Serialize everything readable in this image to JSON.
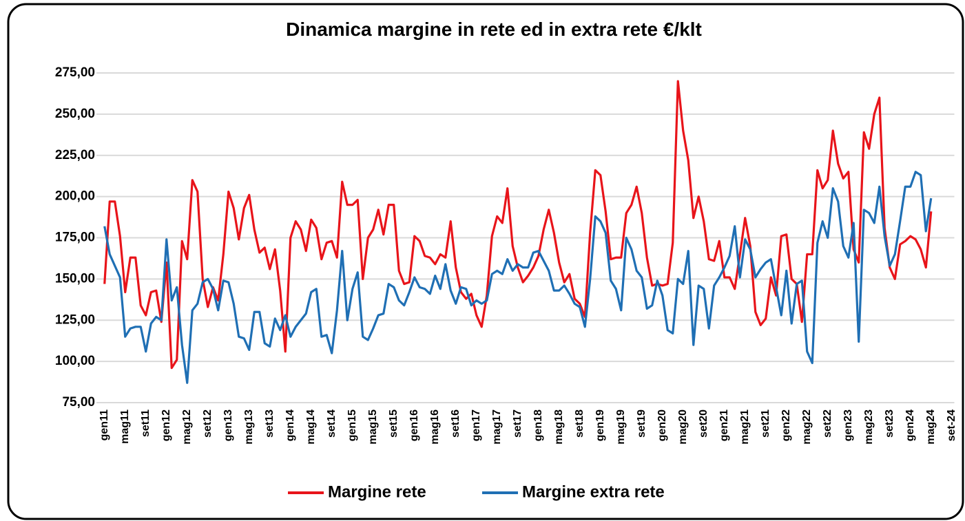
{
  "chart_data": {
    "type": "line",
    "title": "Dinamica margine in rete ed in extra rete €/klt",
    "categories": [
      "gen11",
      null,
      null,
      null,
      "mag11",
      null,
      null,
      null,
      "set11",
      null,
      null,
      null,
      "gen12",
      null,
      null,
      null,
      "mag12",
      null,
      null,
      null,
      "set12",
      null,
      null,
      null,
      "gen13",
      null,
      null,
      null,
      "mag13",
      null,
      null,
      null,
      "set13",
      null,
      null,
      null,
      "gen14",
      null,
      null,
      null,
      "mag14",
      null,
      null,
      null,
      "set14",
      null,
      null,
      null,
      "gen15",
      null,
      null,
      null,
      "mag15",
      null,
      null,
      null,
      "set15",
      null,
      null,
      null,
      "gen16",
      null,
      null,
      null,
      "mag16",
      null,
      null,
      null,
      "set16",
      null,
      null,
      null,
      "gen17",
      null,
      null,
      null,
      "mag17",
      null,
      null,
      null,
      "set17",
      null,
      null,
      null,
      "gen18",
      null,
      null,
      null,
      "mag18",
      null,
      null,
      null,
      "set18",
      null,
      null,
      null,
      "gen19",
      null,
      null,
      null,
      "mag19",
      null,
      null,
      null,
      "set19",
      null,
      null,
      null,
      "gen20",
      null,
      null,
      null,
      "mag20",
      null,
      null,
      null,
      "set20",
      null,
      null,
      null,
      "gen21",
      null,
      null,
      null,
      "mag21",
      null,
      null,
      null,
      "set21",
      null,
      null,
      null,
      "gen22",
      null,
      null,
      null,
      "mag22",
      null,
      null,
      null,
      "set22",
      null,
      null,
      null,
      "gen23",
      null,
      null,
      null,
      "mag23",
      null,
      null,
      null,
      "set23",
      null,
      null,
      null,
      "gen24",
      null,
      null,
      null,
      "mag24",
      null,
      null,
      null,
      "set-24"
    ],
    "series": [
      {
        "name": "Margine rete",
        "color": "#e8141a",
        "values": [
          147,
          197,
          197,
          176,
          142,
          163,
          163,
          134,
          128,
          142,
          143,
          124,
          160,
          96,
          101,
          173,
          162,
          210,
          203,
          150,
          133,
          145,
          137,
          165,
          203,
          193,
          174,
          193,
          201,
          180,
          166,
          169,
          156,
          168,
          143,
          106,
          175,
          185,
          180,
          167,
          186,
          181,
          162,
          172,
          173,
          163,
          209,
          195,
          195,
          198,
          150,
          175,
          180,
          192,
          177,
          195,
          195,
          155,
          147,
          148,
          176,
          173,
          164,
          163,
          159,
          165,
          163,
          185,
          157,
          142,
          138,
          141,
          128,
          121,
          140,
          176,
          188,
          184,
          205,
          170,
          157,
          148,
          152,
          157,
          164,
          180,
          192,
          178,
          160,
          148,
          153,
          138,
          135,
          127,
          178,
          216,
          213,
          191,
          162,
          163,
          163,
          190,
          195,
          206,
          190,
          163,
          146,
          147,
          146,
          147,
          172,
          270,
          240,
          222,
          187,
          200,
          185,
          162,
          161,
          173,
          151,
          151,
          144,
          165,
          187,
          170,
          130,
          122,
          126,
          151,
          140,
          176,
          177,
          150,
          147,
          124,
          165,
          165,
          216,
          205,
          210,
          240,
          220,
          211,
          215,
          168,
          160,
          239,
          229,
          250,
          260,
          181,
          157,
          150,
          171,
          173,
          176,
          174,
          168,
          157,
          191,
          null,
          null,
          null,
          null
        ]
      },
      {
        "name": "Margine extra rete",
        "color": "#1f6fb4",
        "values": [
          182,
          165,
          158,
          151,
          115,
          120,
          121,
          121,
          106,
          123,
          127,
          125,
          174,
          137,
          145,
          110,
          87,
          131,
          135,
          148,
          150,
          144,
          131,
          149,
          148,
          135,
          115,
          114,
          107,
          130,
          130,
          111,
          109,
          126,
          119,
          128,
          115,
          121,
          125,
          129,
          142,
          144,
          115,
          116,
          105,
          131,
          167,
          125,
          144,
          154,
          115,
          113,
          120,
          128,
          129,
          147,
          145,
          137,
          134,
          142,
          151,
          145,
          144,
          141,
          152,
          144,
          159,
          143,
          135,
          145,
          144,
          134,
          137,
          135,
          137,
          153,
          155,
          153,
          162,
          155,
          159,
          157,
          157,
          166,
          167,
          161,
          155,
          143,
          143,
          146,
          141,
          135,
          133,
          121,
          150,
          188,
          185,
          178,
          149,
          144,
          131,
          175,
          168,
          155,
          151,
          132,
          134,
          149,
          140,
          119,
          117,
          150,
          147,
          167,
          110,
          146,
          144,
          120,
          146,
          151,
          157,
          164,
          182,
          151,
          174,
          168,
          151,
          156,
          160,
          162,
          145,
          128,
          155,
          123,
          147,
          149,
          106,
          99,
          172,
          185,
          175,
          205,
          197,
          170,
          163,
          184,
          112,
          192,
          190,
          184,
          206,
          176,
          158,
          165,
          185,
          206,
          206,
          215,
          213,
          179,
          199,
          null,
          null,
          null,
          null
        ]
      }
    ],
    "ylim": [
      75,
      275
    ],
    "yticks": [
      {
        "value": 75,
        "label": "75,00"
      },
      {
        "value": 100,
        "label": "100,00"
      },
      {
        "value": 125,
        "label": "125,00"
      },
      {
        "value": 150,
        "label": "150,00"
      },
      {
        "value": 175,
        "label": "175,00"
      },
      {
        "value": 200,
        "label": "200,00"
      },
      {
        "value": 225,
        "label": "225,00"
      },
      {
        "value": 250,
        "label": "250,00"
      },
      {
        "value": 275,
        "label": "275,00"
      }
    ],
    "grid": true,
    "legend": "bottom"
  }
}
